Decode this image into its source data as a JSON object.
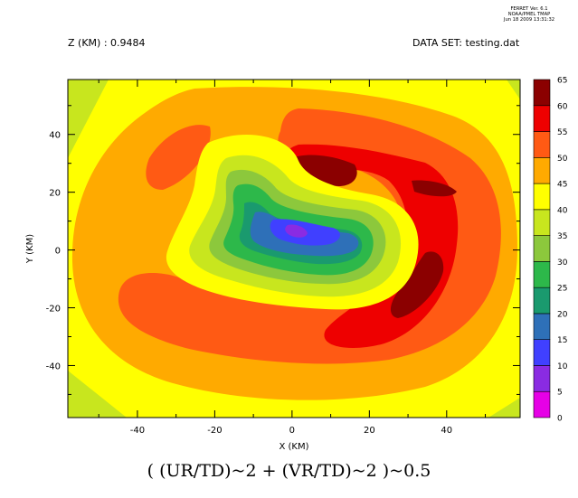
{
  "header": {
    "ferret_lines": [
      "FERRET Ver. 6.1",
      "NOAA/PMEL TMAP",
      "Jun 18 2009 13:31:32"
    ],
    "z_label": "Z (KM) : 0.9484",
    "dataset_label": "DATA SET: testing.dat"
  },
  "bottom_title": "( (UR/TD)~2 + (VR/TD)~2 )~0.5",
  "chart_data": {
    "type": "heatmap",
    "title": "( (UR/TD)~2 + (VR/TD)~2 )~0.5",
    "xlabel": "X (KM)",
    "ylabel": "Y (KM)",
    "xlim": [
      -58,
      59
    ],
    "ylim": [
      -58,
      59
    ],
    "x_ticks": [
      -40,
      -20,
      0,
      20,
      40
    ],
    "y_ticks": [
      -40,
      -20,
      0,
      20,
      40
    ],
    "colorbar": {
      "levels": [
        0,
        5,
        10,
        15,
        20,
        25,
        30,
        35,
        40,
        45,
        50,
        55,
        60,
        65
      ],
      "colors": [
        "#e600e6",
        "#8a2be2",
        "#4040ff",
        "#2e70b8",
        "#1a9a6e",
        "#2db84a",
        "#8cc83c",
        "#c8e61e",
        "#ffff00",
        "#ffaa00",
        "#ff5a14",
        "#ee0000",
        "#8b0000"
      ]
    },
    "regions": [
      {
        "name": "outer-corners",
        "level_range": [
          35,
          40
        ],
        "color": "#c8e61e"
      },
      {
        "name": "outer-ring",
        "level_range": [
          40,
          45
        ],
        "color": "#ffff00"
      },
      {
        "name": "eyewall-ring",
        "level_range": [
          45,
          50
        ],
        "color": "#ffaa00"
      },
      {
        "name": "eyewall-inner",
        "level_range": [
          50,
          55
        ],
        "color": "#ff5a14"
      },
      {
        "name": "wind-max-east",
        "level_range": [
          55,
          60
        ],
        "color": "#ee0000"
      },
      {
        "name": "wind-peak-ne",
        "level_range": [
          60,
          65
        ],
        "color": "#8b0000"
      },
      {
        "name": "eye-edge",
        "level_range": [
          40,
          45
        ],
        "color": "#ffff00"
      },
      {
        "name": "eye-35",
        "level_range": [
          35,
          40
        ],
        "color": "#c8e61e"
      },
      {
        "name": "eye-30",
        "level_range": [
          30,
          35
        ],
        "color": "#8cc83c"
      },
      {
        "name": "eye-25",
        "level_range": [
          25,
          30
        ],
        "color": "#2db84a"
      },
      {
        "name": "eye-20",
        "level_range": [
          20,
          25
        ],
        "color": "#1a9a6e"
      },
      {
        "name": "eye-15",
        "level_range": [
          15,
          20
        ],
        "color": "#2e70b8"
      },
      {
        "name": "eye-10",
        "level_range": [
          10,
          15
        ],
        "color": "#4040ff"
      },
      {
        "name": "eye-center",
        "level_range": [
          5,
          10
        ],
        "color": "#8a2be2"
      }
    ]
  }
}
